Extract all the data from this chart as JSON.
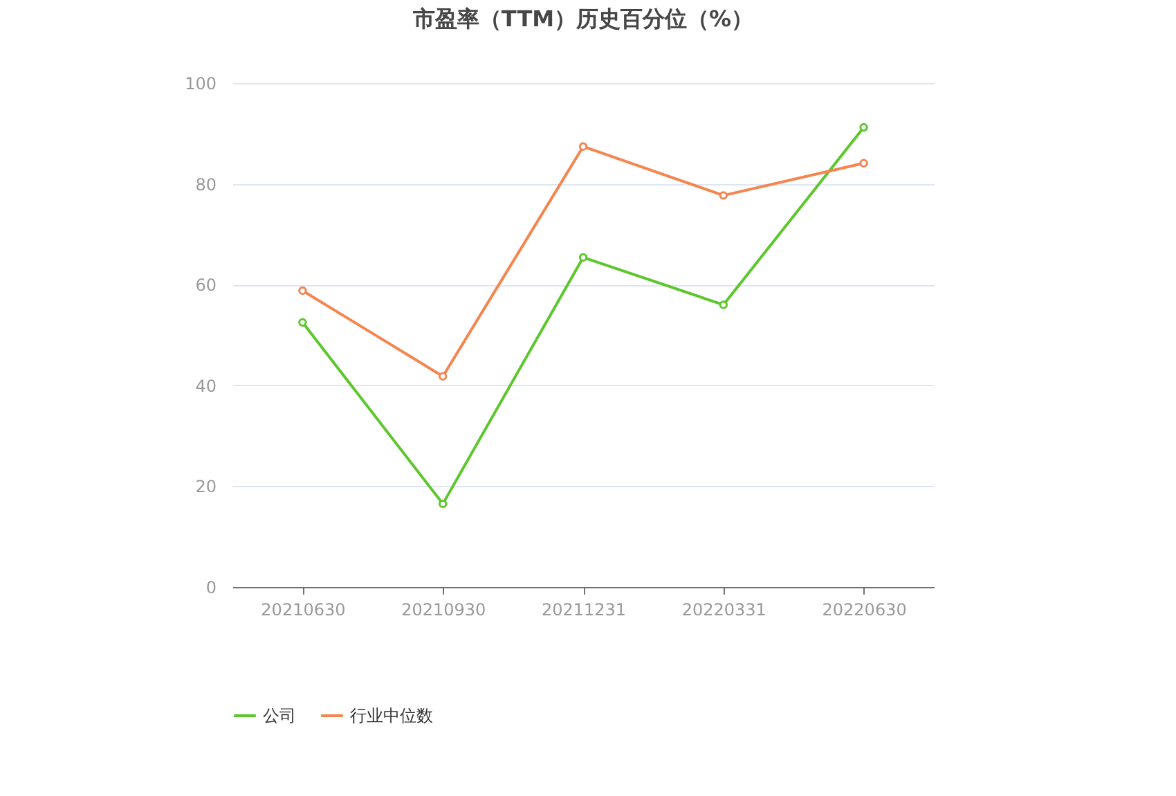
{
  "chart_data": {
    "type": "line",
    "title": "市盈率（TTM）历史百分位（%）",
    "categories": [
      "20210630",
      "20210930",
      "20211231",
      "20220331",
      "20220630"
    ],
    "series": [
      {
        "name": "公司",
        "color": "#5cc72c",
        "values": [
          52.5,
          16.5,
          65.4,
          56.0,
          91.2
        ]
      },
      {
        "name": "行业中位数",
        "color": "#f5854f",
        "values": [
          58.8,
          41.8,
          87.4,
          77.7,
          84.1
        ]
      }
    ],
    "ylim": [
      0,
      100
    ],
    "yticks": [
      0,
      20,
      40,
      60,
      80,
      100
    ],
    "grid": "y",
    "legend": "bottom",
    "marker": "circle",
    "line_style": "solid"
  }
}
